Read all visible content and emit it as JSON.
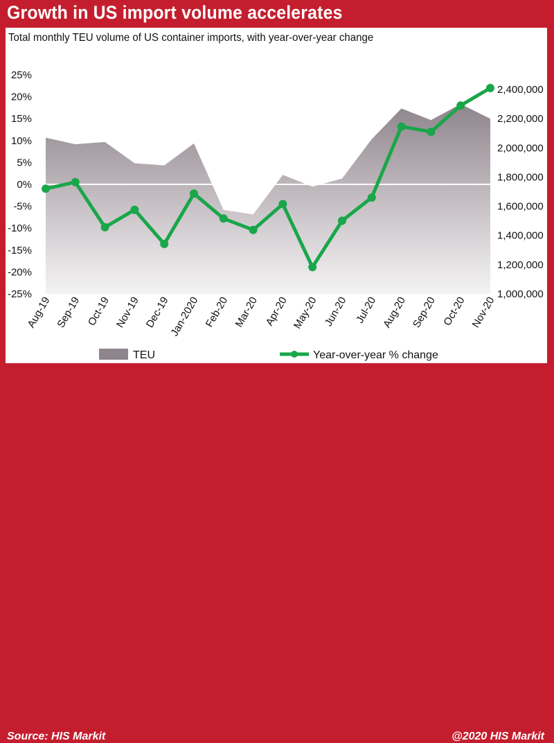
{
  "header": {
    "title": "Growth in US import volume accelerates"
  },
  "subtitle": "Total monthly TEU volume of US container imports, with year-over-year change",
  "footer": {
    "source": "Source: HIS Markit",
    "copyright": "@2020 HIS Markit"
  },
  "colors": {
    "frame": "#c41e2e",
    "line": "#1aa64a",
    "area_top": "#8f858c",
    "area_bottom": "#f2f1f2"
  },
  "chart_data": {
    "type": "line",
    "categories": [
      "Aug-19",
      "Sep-19",
      "Oct-19",
      "Nov-19",
      "Dec-19",
      "Jan-2020",
      "Feb-20",
      "Mar-20",
      "Apr-20",
      "May-20",
      "Jun-20",
      "Jul-20",
      "Aug-20",
      "Sep-20",
      "Oct-20",
      "Nov-20"
    ],
    "series": [
      {
        "name": "TEU",
        "type": "area",
        "axis": "right",
        "values": [
          2070000,
          2025000,
          2040000,
          1895000,
          1880000,
          2030000,
          1575000,
          1545000,
          1815000,
          1735000,
          1790000,
          2060000,
          2270000,
          2190000,
          2300000,
          2200000
        ]
      },
      {
        "name": "Year-over-year % change",
        "type": "line",
        "axis": "left",
        "values": [
          -1.0,
          0.5,
          -9.8,
          -5.8,
          -13.6,
          -2.1,
          -7.8,
          -10.4,
          -4.5,
          -18.9,
          -8.3,
          -3.0,
          13.2,
          12.0,
          18.0,
          22.0
        ]
      }
    ],
    "y_left": {
      "ylim": [
        -25,
        25
      ],
      "ticks": [
        "25%",
        "20%",
        "15%",
        "10%",
        "5%",
        "0%",
        "-5%",
        "-10%",
        "-15%",
        "-20%",
        "-25%"
      ]
    },
    "y_right": {
      "ylim": [
        1000000,
        2500000
      ],
      "ticks": [
        "2,400,000",
        "2,200,000",
        "2,000,000",
        "1,800,000",
        "1,600,000",
        "1,400,000",
        "1,200,000",
        "1,000,000"
      ]
    },
    "legend": {
      "placement": "bottom",
      "teu_label": "TEU",
      "yoy_label": "Year-over-year % change"
    },
    "grid": false
  }
}
